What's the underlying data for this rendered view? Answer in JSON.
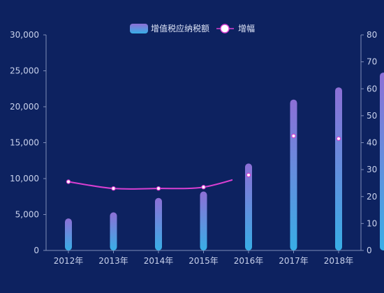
{
  "chart_data": {
    "type": "bar",
    "categories": [
      "2012年",
      "2013年",
      "2014年",
      "2015年",
      "2016年",
      "2017年",
      "2018年"
    ],
    "series": [
      {
        "name": "增值税应纳税额",
        "type": "bar",
        "axis": "left",
        "values": [
          4450,
          5300,
          7300,
          8200,
          12100,
          21000,
          22700
        ]
      },
      {
        "name": "增幅",
        "type": "line",
        "axis": "right",
        "values": [
          25.5,
          23.0,
          23.0,
          23.5,
          28.0,
          42.5,
          41.5
        ]
      }
    ],
    "y_left": {
      "ticks": [
        "0",
        "5,000",
        "10,000",
        "15,000",
        "20,000",
        "25,000",
        "30,000"
      ],
      "ylim": [
        0,
        30000
      ]
    },
    "y_right": {
      "ticks": [
        "0",
        "10",
        "20",
        "30",
        "40",
        "50",
        "60",
        "70",
        "80"
      ],
      "ylim": [
        0,
        80
      ]
    },
    "extra_bar_right_axis_value": 66,
    "legend_position": "top-center",
    "grid": false,
    "colors": {
      "background": "#0d2260",
      "bar_top": "#8d6fd6",
      "bar_bottom": "#38aee6",
      "line": "#d93fd1",
      "marker_fill": "#ffffff",
      "axis": "#7f8db8",
      "text": "#c9d2ec"
    }
  }
}
